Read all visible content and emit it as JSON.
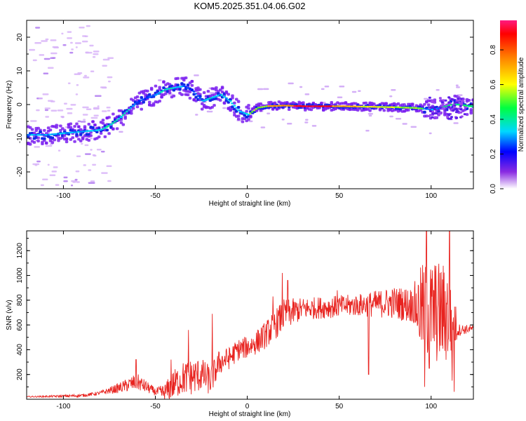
{
  "figure": {
    "title": "KOM5.2025.351.04.06.G02"
  },
  "chart_data": [
    {
      "type": "heatmap",
      "xlabel": "Height of straight line (km)",
      "ylabel": "Frequency (Hz)",
      "xlim": [
        -120,
        123
      ],
      "ylim": [
        -25,
        25
      ],
      "xticks": [
        -100,
        -50,
        0,
        50,
        100
      ],
      "yticks": [
        -20,
        -10,
        0,
        10,
        20
      ],
      "grid": false,
      "ridge": {
        "x": [
          -120,
          -110,
          -100,
          -90,
          -80,
          -75,
          -70,
          -65,
          -60,
          -55,
          -50,
          -45,
          -40,
          -35,
          -30,
          -25,
          -20,
          -15,
          -10,
          -5,
          0,
          5,
          10,
          20,
          30,
          40,
          50,
          60,
          70,
          80,
          90,
          95,
          100,
          105,
          110,
          115,
          120,
          123
        ],
        "y": [
          -9,
          -9,
          -8.5,
          -8,
          -7.5,
          -6,
          -4,
          -1.5,
          1,
          2,
          3,
          4.5,
          5,
          5.5,
          4,
          1,
          2,
          3,
          1,
          -2,
          -3,
          -1,
          -0.5,
          -0.3,
          -0.5,
          -0.5,
          -0.5,
          -0.6,
          -0.7,
          -0.8,
          -1,
          -1.2,
          -1.5,
          -1,
          0,
          0,
          -0.5,
          -0.5
        ]
      },
      "colorbar": {
        "label": "Normalized spectral amplitude",
        "ticks": [
          "0.0",
          "0.2",
          "0.4",
          "0.6",
          "0.8"
        ],
        "range": [
          0,
          0.97
        ]
      }
    },
    {
      "type": "line",
      "xlabel": "Height of straight line (km)",
      "ylabel": "SNR (v/v)",
      "xlim": [
        -120,
        123
      ],
      "ylim": [
        0,
        1360
      ],
      "xticks": [
        -100,
        -50,
        0,
        50,
        100
      ],
      "yticks": [
        200,
        400,
        600,
        800,
        1000,
        1200
      ],
      "grid": false,
      "color": "#e8231f",
      "trend": {
        "x": [
          -120,
          -100,
          -90,
          -80,
          -70,
          -60,
          -50,
          -45,
          -40,
          -35,
          -30,
          -25,
          -20,
          -15,
          -10,
          -5,
          0,
          5,
          10,
          15,
          20,
          30,
          40,
          50,
          60,
          70,
          80,
          90,
          95,
          100,
          105,
          110,
          115,
          123
        ],
        "y": [
          20,
          25,
          30,
          50,
          90,
          140,
          60,
          50,
          120,
          170,
          180,
          200,
          150,
          300,
          330,
          400,
          420,
          460,
          520,
          600,
          680,
          730,
          740,
          750,
          760,
          770,
          780,
          760,
          720,
          700,
          700,
          680,
          560,
          570
        ]
      },
      "noise": {
        "x": [
          -120,
          -80,
          -70,
          -60,
          -50,
          -40,
          -30,
          -20,
          -10,
          0,
          10,
          20,
          30,
          60,
          90,
          95,
          100,
          110,
          115,
          123
        ],
        "y": [
          5,
          15,
          40,
          70,
          30,
          120,
          150,
          120,
          90,
          90,
          110,
          130,
          90,
          90,
          150,
          380,
          420,
          420,
          50,
          25
        ]
      },
      "spikes": [
        {
          "x": -60.5,
          "y": 320
        },
        {
          "x": -41.5,
          "y": 320
        },
        {
          "x": -32,
          "y": 560
        },
        {
          "x": -19,
          "y": 690
        },
        {
          "x": 14,
          "y": 830
        },
        {
          "x": 19,
          "y": 1020
        },
        {
          "x": 22,
          "y": 960
        },
        {
          "x": 49,
          "y": 880
        },
        {
          "x": 66,
          "y": 200
        },
        {
          "x": 90,
          "y": 830
        },
        {
          "x": 95,
          "y": 940
        },
        {
          "x": 96.5,
          "y": 100
        },
        {
          "x": 97.5,
          "y": 1360
        },
        {
          "x": 99,
          "y": 250
        },
        {
          "x": 110,
          "y": 1360
        },
        {
          "x": 111.5,
          "y": 150
        },
        {
          "x": 112.5,
          "y": 60
        },
        {
          "x": 102,
          "y": 1080
        }
      ]
    }
  ]
}
